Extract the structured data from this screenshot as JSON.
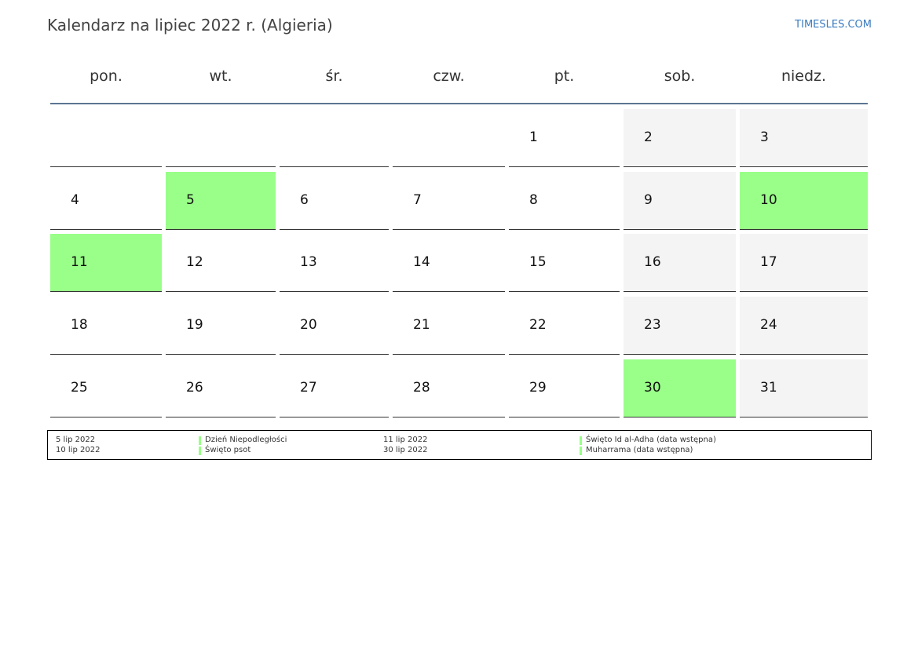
{
  "header": {
    "title": "Kalendarz na lipiec 2022 r. (Algieria)",
    "site": "TIMESLES.COM"
  },
  "weekdays": [
    "pon.",
    "wt.",
    "śr.",
    "czw.",
    "pt.",
    "sob.",
    "niedz."
  ],
  "weeks": [
    [
      null,
      null,
      null,
      null,
      {
        "day": 1
      },
      {
        "day": 2
      },
      {
        "day": 3
      }
    ],
    [
      {
        "day": 4
      },
      {
        "day": 5,
        "holiday": true
      },
      {
        "day": 6
      },
      {
        "day": 7
      },
      {
        "day": 8
      },
      {
        "day": 9
      },
      {
        "day": 10,
        "holiday": true
      }
    ],
    [
      {
        "day": 11,
        "holiday": true
      },
      {
        "day": 12
      },
      {
        "day": 13
      },
      {
        "day": 14
      },
      {
        "day": 15
      },
      {
        "day": 16
      },
      {
        "day": 17
      }
    ],
    [
      {
        "day": 18
      },
      {
        "day": 19
      },
      {
        "day": 20
      },
      {
        "day": 21
      },
      {
        "day": 22
      },
      {
        "day": 23
      },
      {
        "day": 24
      }
    ],
    [
      {
        "day": 25
      },
      {
        "day": 26
      },
      {
        "day": 27
      },
      {
        "day": 28
      },
      {
        "day": 29
      },
      {
        "day": 30,
        "holiday": true
      },
      {
        "day": 31
      }
    ]
  ],
  "holiday_color": "#99ff88",
  "weekend_color": "#f4f4f4",
  "legend": [
    [
      {
        "date": "5 lip 2022",
        "name": "Dzień Niepodległości"
      },
      {
        "date": "10 lip 2022",
        "name": "Święto psot"
      }
    ],
    [
      {
        "date": "11 lip 2022",
        "name": "Święto Id al-Adha (data wstępna)"
      },
      {
        "date": "30 lip 2022",
        "name": "Muharrama (data wstępna)"
      }
    ]
  ]
}
